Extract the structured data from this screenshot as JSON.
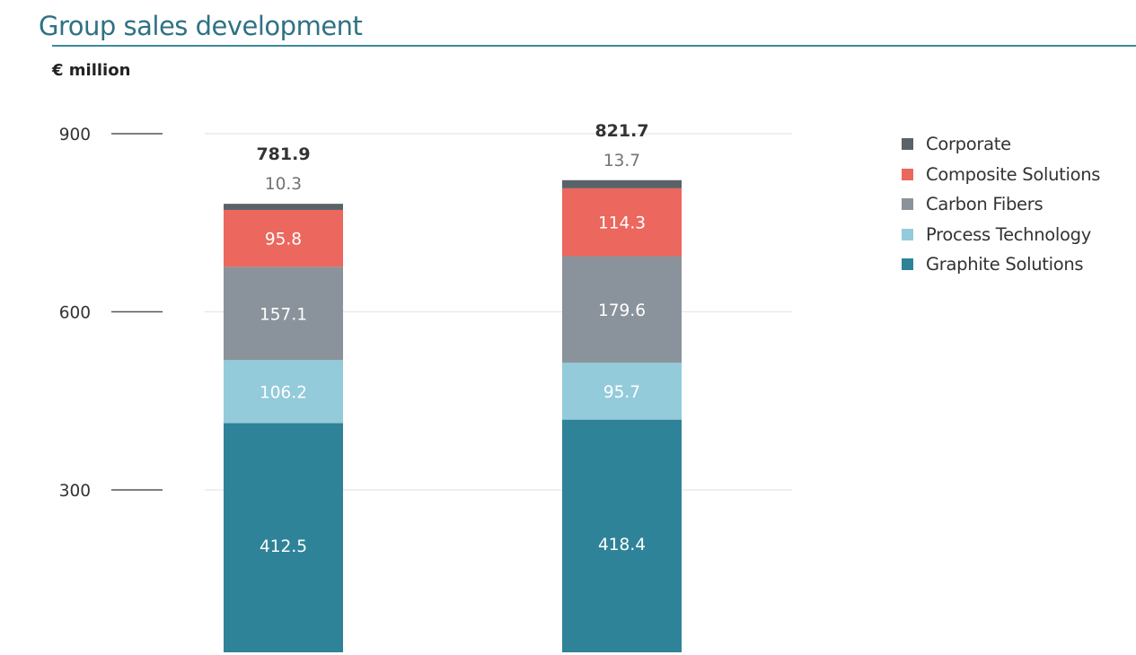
{
  "chart_data": {
    "type": "bar",
    "stacked": true,
    "title": "Group sales development",
    "ylabel": "€ million",
    "xlabel": "",
    "ylim": [
      0,
      900
    ],
    "yticks": [
      300,
      600,
      900
    ],
    "grid": true,
    "legend_position": "right",
    "categories": [
      "",
      ""
    ],
    "totals": [
      "781.9",
      "821.7"
    ],
    "series": [
      {
        "name": "Graphite Solutions",
        "color": "#2f8399",
        "values": [
          412.5,
          418.4
        ],
        "labels": [
          "412.5",
          "418.4"
        ]
      },
      {
        "name": "Process Technology",
        "color": "#93cbdb",
        "values": [
          106.2,
          95.7
        ],
        "labels": [
          "106.2",
          "95.7"
        ]
      },
      {
        "name": "Carbon Fibers",
        "color": "#8a939b",
        "values": [
          157.1,
          179.6
        ],
        "labels": [
          "157.1",
          "179.6"
        ]
      },
      {
        "name": "Composite Solutions",
        "color": "#ec675d",
        "values": [
          95.8,
          114.3
        ],
        "labels": [
          "95.8",
          "114.3"
        ]
      },
      {
        "name": "Corporate",
        "color": "#5a6268",
        "values": [
          10.3,
          13.7
        ],
        "labels": [
          "10.3",
          "13.7"
        ]
      }
    ],
    "legend_order": [
      "Corporate",
      "Composite Solutions",
      "Carbon Fibers",
      "Process Technology",
      "Graphite Solutions"
    ]
  }
}
